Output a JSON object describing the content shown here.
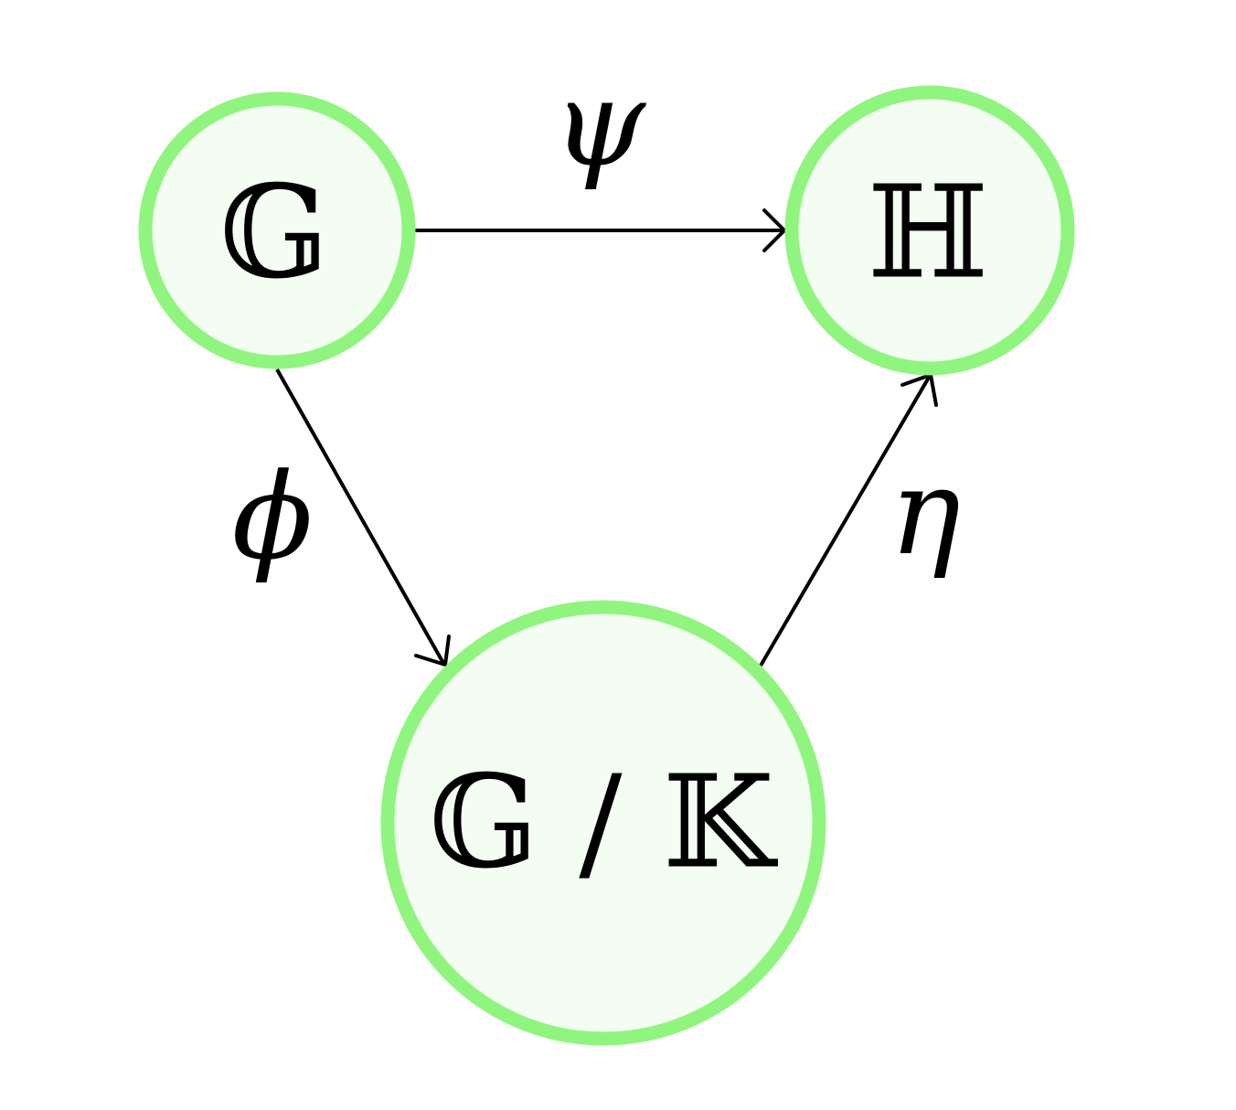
{
  "colors": {
    "node_stroke": "#90f57f",
    "node_fill": "#f3fdf1",
    "edge": "#000000",
    "text": "#000000"
  },
  "nodes": {
    "g": {
      "label": "𝔾"
    },
    "h": {
      "label": "ℍ"
    },
    "gk": {
      "label": "𝔾 / 𝕂"
    }
  },
  "edges": {
    "psi": {
      "label": "ψ",
      "from": "g",
      "to": "h"
    },
    "phi": {
      "label": "ϕ",
      "from": "g",
      "to": "gk"
    },
    "eta": {
      "label": "η",
      "from": "gk",
      "to": "h"
    }
  }
}
